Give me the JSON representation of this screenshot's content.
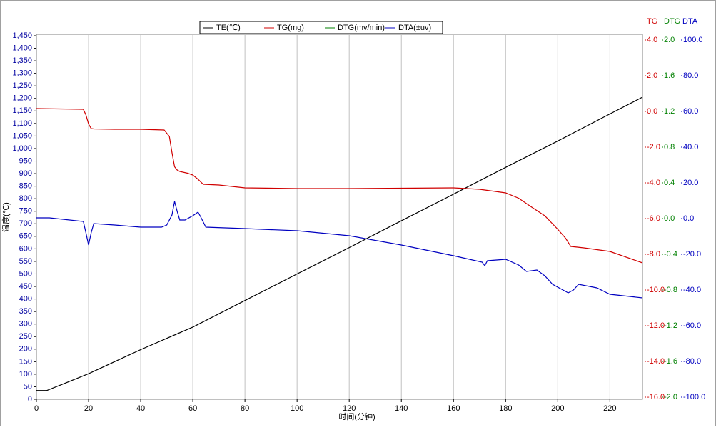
{
  "chart_data": {
    "type": "line",
    "xlabel": "时间(分钟)",
    "ylabel": "温度(℃)",
    "xlim": [
      0,
      232.5
    ],
    "xticks": [
      0,
      20,
      40,
      60,
      80,
      100,
      120,
      140,
      160,
      180,
      200,
      220
    ],
    "ylim": [
      0,
      1450
    ],
    "yticks": [
      0,
      50,
      100,
      150,
      200,
      250,
      300,
      350,
      400,
      450,
      500,
      550,
      600,
      650,
      700,
      750,
      800,
      850,
      900,
      950,
      {
        "value": 1000,
        "label": "1,000"
      },
      {
        "value": 1050,
        "label": "1,050"
      },
      {
        "value": 1100,
        "label": "1,100"
      },
      {
        "value": 1150,
        "label": "1,150"
      },
      {
        "value": 1200,
        "label": "1,200"
      },
      {
        "value": 1250,
        "label": "1,250"
      },
      {
        "value": 1300,
        "label": "1,300"
      },
      {
        "value": 1350,
        "label": "1,350"
      },
      {
        "value": 1400,
        "label": "1,400"
      },
      {
        "value": 1450,
        "label": "1,450"
      }
    ],
    "y2label": "TG",
    "y2color": "#d00000",
    "y2lim": [
      -16,
      4
    ],
    "y2ticks": [
      {
        "value": 4,
        "label": "4.0"
      },
      {
        "value": 2,
        "label": "2.0"
      },
      {
        "value": 0,
        "label": "0.0"
      },
      {
        "value": -2,
        "label": "-2.0"
      },
      {
        "value": -4,
        "label": "-4.0"
      },
      {
        "value": -6,
        "label": "-6.0"
      },
      {
        "value": -8,
        "label": "-8.0"
      },
      {
        "value": -10,
        "label": "-10.0"
      },
      {
        "value": -12,
        "label": "-12.0"
      },
      {
        "value": -14,
        "label": "-14.0"
      },
      {
        "value": -16,
        "label": "-16.0"
      }
    ],
    "y3label": "DTG",
    "y3color": "#008000",
    "y3lim": [
      -2,
      2
    ],
    "y3ticks": [
      {
        "value": 2,
        "label": "2.0"
      },
      {
        "value": 1.6,
        "label": "1.6"
      },
      {
        "value": 1.2,
        "label": "1.2"
      },
      {
        "value": 0.8,
        "label": "0.8"
      },
      {
        "value": 0.4,
        "label": "0.4"
      },
      {
        "value": 0,
        "label": "0.0"
      },
      {
        "value": -0.4,
        "label": "-0.4"
      },
      {
        "value": -0.8,
        "label": "-0.8"
      },
      {
        "value": -1.2,
        "label": "-1.2"
      },
      {
        "value": -1.6,
        "label": "-1.6"
      },
      {
        "value": -2,
        "label": "-2.0"
      }
    ],
    "y4label": "DTA",
    "y4color": "#0000c0",
    "y4lim": [
      -100,
      100
    ],
    "y4ticks": [
      {
        "value": 100,
        "label": "100.0"
      },
      {
        "value": 80,
        "label": "80.0"
      },
      {
        "value": 60,
        "label": "60.0"
      },
      {
        "value": 40,
        "label": "40.0"
      },
      {
        "value": 20,
        "label": "20.0"
      },
      {
        "value": 0,
        "label": "0.0"
      },
      {
        "value": -20,
        "label": "-20.0"
      },
      {
        "value": -40,
        "label": "-40.0"
      },
      {
        "value": -60,
        "label": "-60.0"
      },
      {
        "value": -80,
        "label": "-80.0"
      },
      {
        "value": -100,
        "label": "-100.0"
      }
    ],
    "grid": "x",
    "legend": "top",
    "series": [
      {
        "name": "TE(℃)",
        "color": "#000000",
        "axis": "y",
        "x": [
          0,
          4,
          10,
          20,
          30,
          40,
          50,
          60,
          80,
          100,
          120,
          140,
          160,
          180,
          200,
          220,
          232.5
        ],
        "values": [
          35,
          35,
          60,
          102,
          150,
          198,
          243,
          288,
          394,
          500,
          605,
          712,
          818,
          925,
          1030,
          1138,
          1205
        ]
      },
      {
        "name": "TG(mg)",
        "color": "#d00000",
        "axis": "y2",
        "x": [
          0,
          18,
          19,
          20,
          21,
          22,
          30,
          40,
          49,
          51,
          52,
          53,
          54,
          55,
          58,
          60,
          62,
          64,
          70,
          80,
          100,
          120,
          140,
          160,
          170,
          180,
          185,
          190,
          195,
          200,
          203,
          205,
          210,
          220,
          232.5
        ],
        "values": [
          0.16,
          0.12,
          -0.2,
          -0.7,
          -0.96,
          -0.98,
          -1.0,
          -1.0,
          -1.04,
          -1.4,
          -2.3,
          -3.1,
          -3.28,
          -3.36,
          -3.46,
          -3.56,
          -3.8,
          -4.08,
          -4.12,
          -4.28,
          -4.32,
          -4.32,
          -4.3,
          -4.28,
          -4.36,
          -4.56,
          -4.86,
          -5.36,
          -5.84,
          -6.6,
          -7.1,
          -7.56,
          -7.64,
          -7.84,
          -8.48
        ]
      },
      {
        "name": "DTG(mv/min)",
        "color": "#008000",
        "axis": "y3",
        "x": [
          0,
          232.5
        ],
        "values": [
          null,
          null
        ]
      },
      {
        "name": "DTA(±uv)",
        "color": "#0000c0",
        "axis": "y4",
        "x": [
          0,
          5,
          18,
          19,
          20,
          21,
          22,
          30,
          40,
          48,
          50,
          52,
          53,
          54,
          55,
          57,
          60,
          62,
          63,
          65,
          80,
          100,
          120,
          140,
          160,
          171,
          172,
          173,
          180,
          185,
          188,
          192,
          195,
          198,
          204,
          206,
          208,
          215,
          220,
          232.5
        ],
        "values": [
          0.4,
          0.4,
          -1.6,
          -8,
          -14.8,
          -8,
          -2.8,
          -3.6,
          -4.8,
          -4.8,
          -3.6,
          2,
          9.6,
          4,
          -0.8,
          -0.8,
          1.6,
          3.6,
          1,
          -4.8,
          -5.6,
          -6.8,
          -9.6,
          -14.8,
          -20.8,
          -24.4,
          -26.4,
          -23.6,
          -22.8,
          -26,
          -29.6,
          -28.8,
          -32,
          -36.8,
          -41.6,
          -40,
          -36.8,
          -38.8,
          -42.4,
          -44.4
        ]
      }
    ]
  }
}
